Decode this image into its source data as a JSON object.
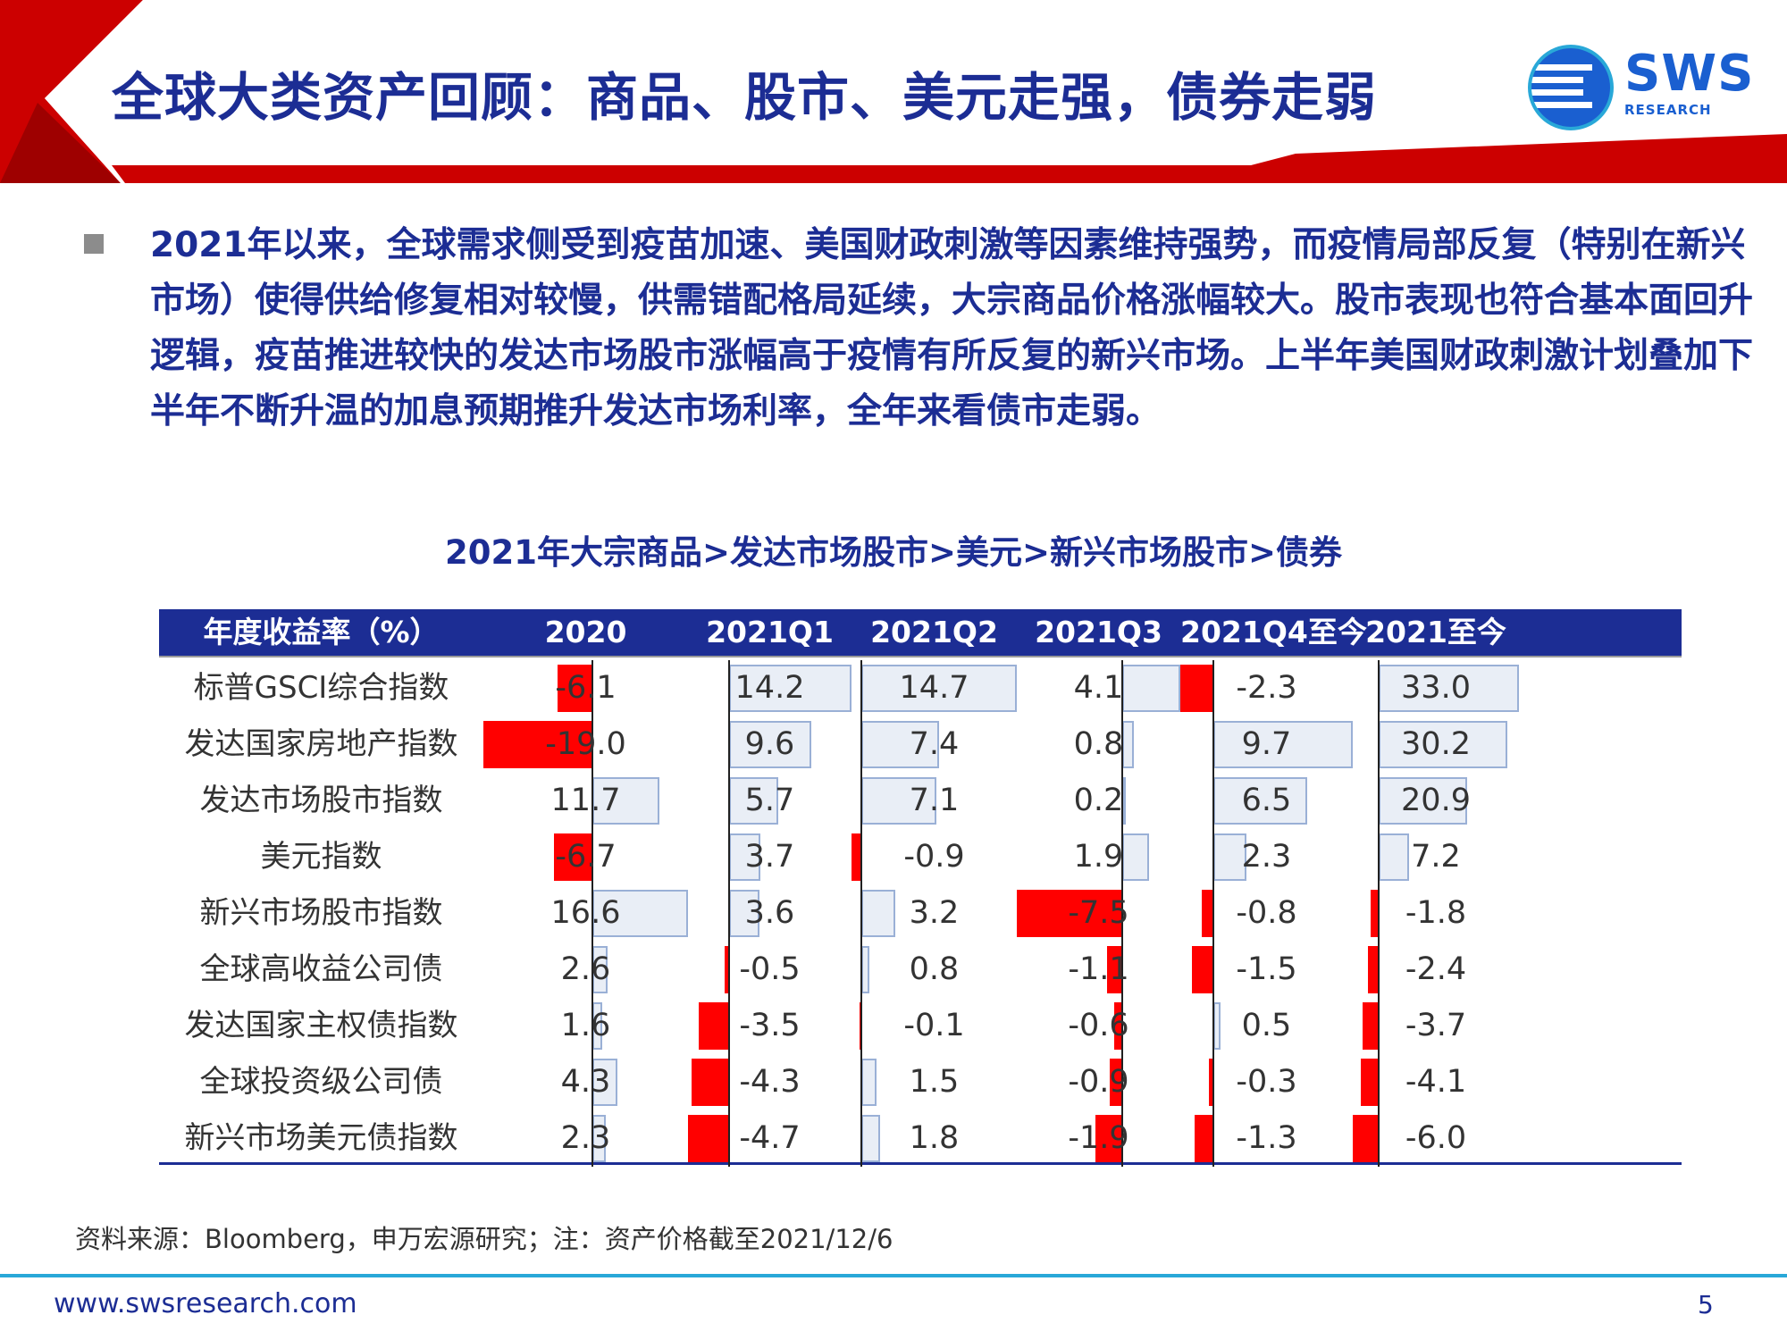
{
  "header": {
    "title": "全球大类资产回顾：商品、股市、美元走强，债券走弱",
    "logo_text": "SWS",
    "logo_sub": "RESEARCH"
  },
  "bullet": {
    "text": "2021年以来，全球需求侧受到疫苗加速、美国财政刺激等因素维持强势，而疫情局部反复（特别在新兴市场）使得供给修复相对较慢，供需错配格局延续，大宗商品价格涨幅较大。股市表现也符合基本面回升逻辑，疫苗推进较快的发达市场股市涨幅高于疫情有所反复的新兴市场。上半年美国财政刺激计划叠加下半年不断升温的加息预期推升发达市场利率，全年来看债市走弱。"
  },
  "table": {
    "caption": "2021年大宗商品>发达市场股市>美元>新兴市场股市>债券",
    "header_label": "年度收益率（%）",
    "columns": [
      "2020",
      "2021Q1",
      "2021Q2",
      "2021Q3",
      "2021Q4至今",
      "2021至今"
    ],
    "rows": [
      {
        "label": "标普GSCI综合指数",
        "values": [
          "-6.1",
          "14.2",
          "14.7",
          "4.1",
          "-2.3",
          "33.0"
        ]
      },
      {
        "label": "发达国家房地产指数",
        "values": [
          "-19.0",
          "9.6",
          "7.4",
          "0.8",
          "9.7",
          "30.2"
        ]
      },
      {
        "label": "发达市场股市指数",
        "values": [
          "11.7",
          "5.7",
          "7.1",
          "0.2",
          "6.5",
          "20.9"
        ]
      },
      {
        "label": "美元指数",
        "values": [
          "-6.7",
          "3.7",
          "-0.9",
          "1.9",
          "2.3",
          "7.2"
        ]
      },
      {
        "label": "新兴市场股市指数",
        "values": [
          "16.6",
          "3.6",
          "3.2",
          "-7.5",
          "-0.8",
          "-1.8"
        ]
      },
      {
        "label": "全球高收益公司债",
        "values": [
          "2.6",
          "-0.5",
          "0.8",
          "-1.1",
          "-1.5",
          "-2.4"
        ]
      },
      {
        "label": "发达国家主权债指数",
        "values": [
          "1.6",
          "-3.5",
          "-0.1",
          "-0.6",
          "0.5",
          "-3.7"
        ]
      },
      {
        "label": "全球投资级公司债",
        "values": [
          "4.3",
          "-4.3",
          "1.5",
          "-0.9",
          "-0.3",
          "-4.1"
        ]
      },
      {
        "label": "新兴市场美元债指数",
        "values": [
          "2.3",
          "-4.7",
          "1.8",
          "-1.9",
          "-1.3",
          "-6.0"
        ]
      }
    ],
    "colors": {
      "positive": "#e9eef6",
      "positive_border": "#9ab0d6",
      "negative": "#ff0000"
    }
  },
  "source_note": "资料来源：Bloomberg，申万宏源研究；注：资产价格截至2021/12/6",
  "footer": {
    "url": "www.swsresearch.com",
    "page_number": "5"
  }
}
